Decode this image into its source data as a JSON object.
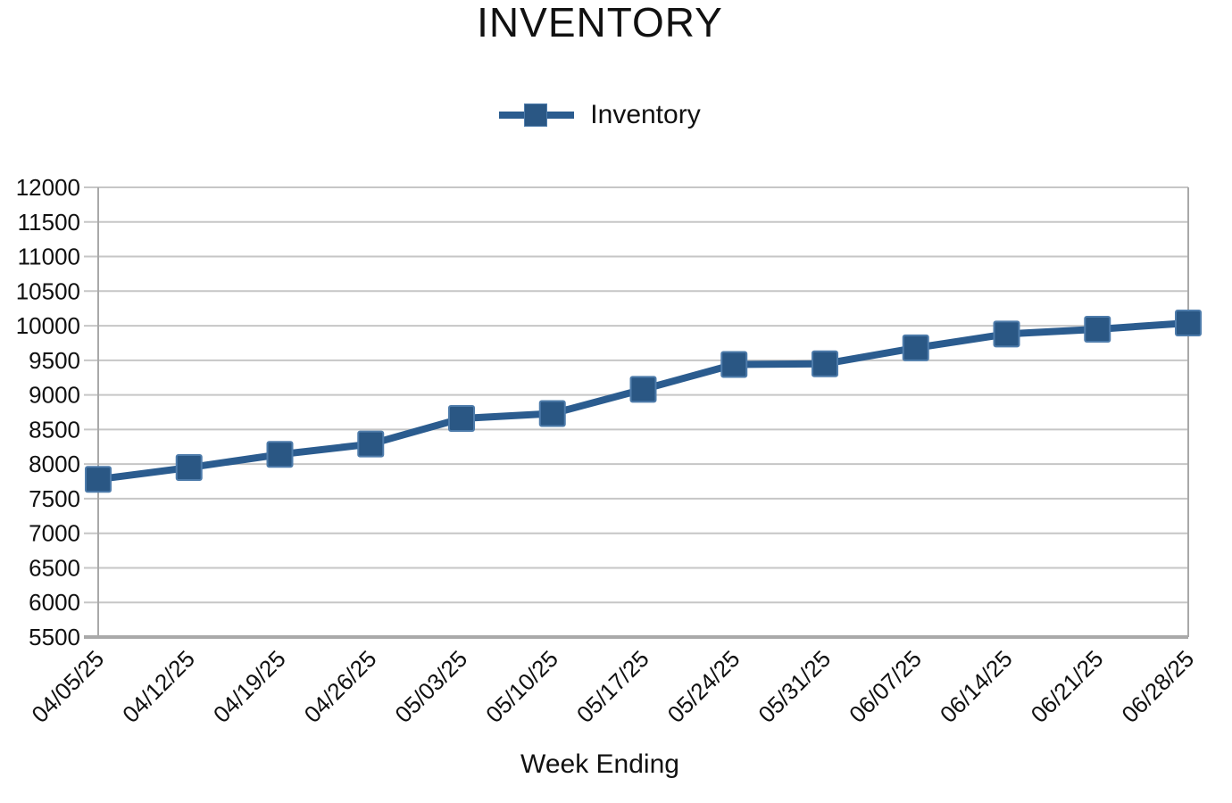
{
  "chart_data": {
    "type": "line",
    "title": "INVENTORY",
    "xlabel": "Week Ending",
    "ylabel": "",
    "legend_position": "top",
    "grid": true,
    "categories": [
      "04/05/25",
      "04/12/25",
      "04/19/25",
      "04/26/25",
      "05/03/25",
      "05/10/25",
      "05/17/25",
      "05/24/25",
      "05/31/25",
      "06/07/25",
      "06/14/25",
      "06/21/25",
      "06/28/25"
    ],
    "series": [
      {
        "name": "Inventory",
        "values": [
          7780,
          7950,
          8140,
          8290,
          8660,
          8730,
          9080,
          9440,
          9450,
          9680,
          9880,
          9950,
          10040
        ]
      }
    ],
    "ylim": [
      5500,
      12000
    ],
    "ytick_step": 500,
    "colors": {
      "line": "#2B5C8F",
      "marker_fill": "#2A5784",
      "marker_edge": "#4E7CAB",
      "gridline": "#C6C6C6",
      "axis": "#A9A9A9",
      "text": "#111111"
    }
  }
}
